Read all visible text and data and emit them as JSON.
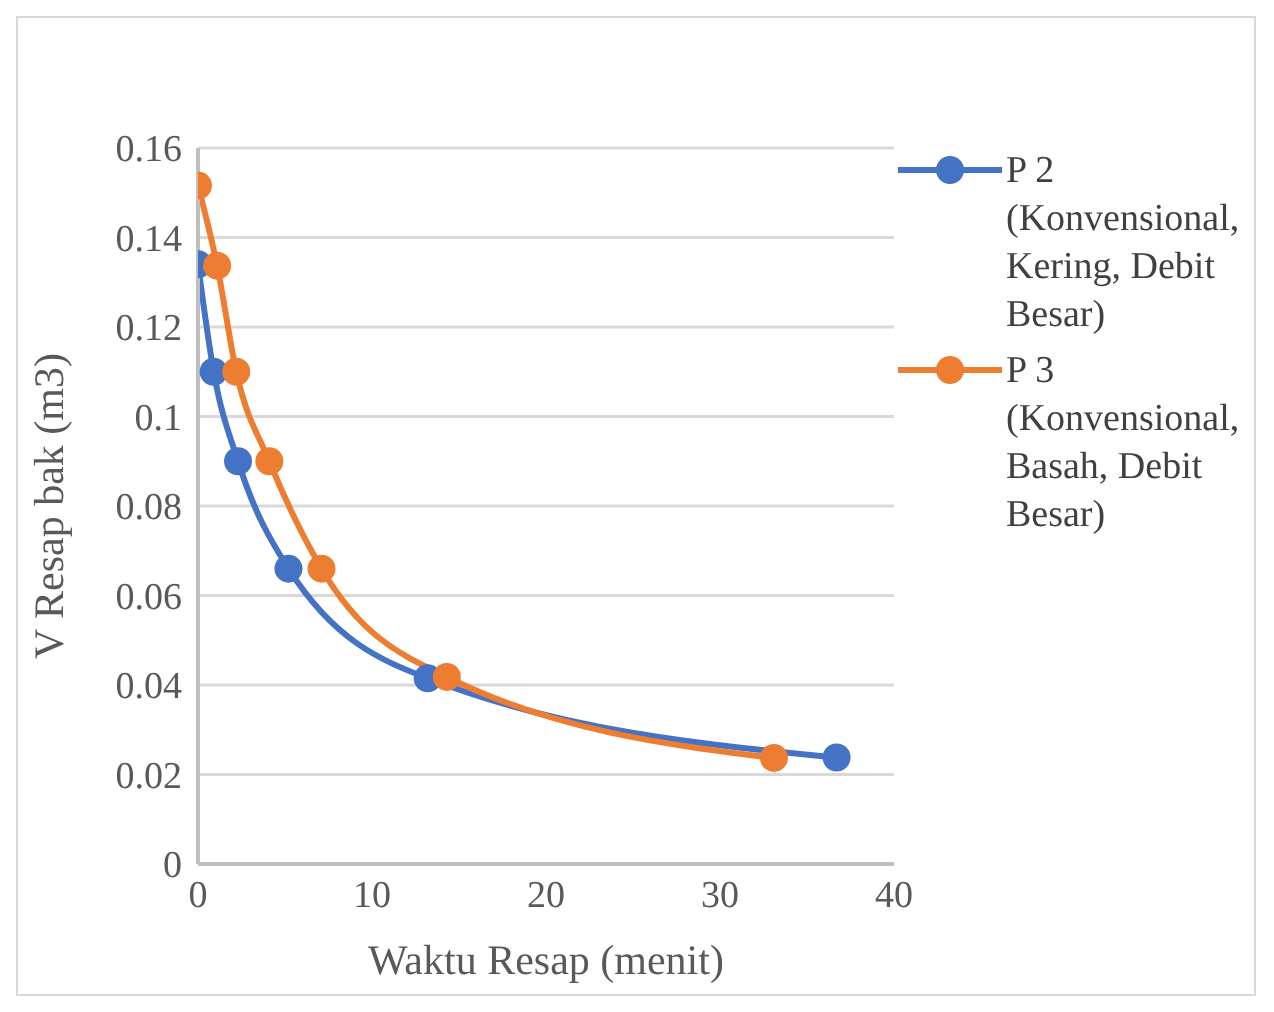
{
  "chart_data": {
    "type": "line",
    "xlabel": "Waktu Resap (menit)",
    "ylabel": "V Resap bak (m3)",
    "xlim": [
      0,
      40
    ],
    "xticks": [
      0,
      10,
      20,
      30,
      40
    ],
    "ylim": [
      0,
      0.16
    ],
    "yticks": [
      0,
      0.02,
      0.04,
      0.06,
      0.08,
      0.1,
      0.12,
      0.14,
      0.16
    ],
    "grid": "y",
    "legend": "top right",
    "marker": "circle",
    "line_style": "solid",
    "series": [
      {
        "name": "P 2 (Konvensional, Kering, Debit Besar)",
        "color": "#4472c4",
        "x": [
          0,
          0.9,
          2.3,
          5.2,
          13.2,
          36.7
        ],
        "values": [
          0.134,
          0.11,
          0.09,
          0.066,
          0.0415,
          0.0238
        ]
      },
      {
        "name": "P 3 (Konvensional, Basah, Debit Besar)",
        "color": "#ed7d31",
        "x": [
          0,
          1.1,
          2.2,
          4.1,
          7.1,
          14.3,
          33.1
        ],
        "values": [
          0.1516,
          0.1337,
          0.11,
          0.09,
          0.066,
          0.0418,
          0.0237
        ]
      }
    ]
  }
}
